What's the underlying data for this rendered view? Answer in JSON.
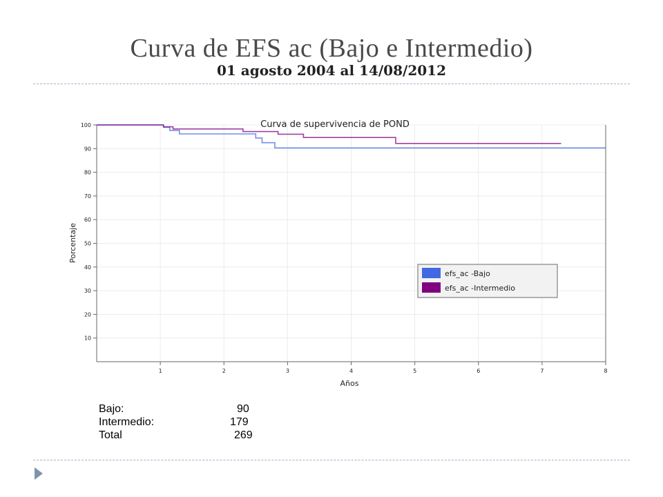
{
  "header": {
    "title": "Curva de EFS ac (Bajo e Intermedio)",
    "subtitle": "01 agosto 2004 al 14/08/2012"
  },
  "chart_data": {
    "type": "line",
    "step": true,
    "title": "Curva de supervivencia de POND",
    "xlabel": "Años",
    "ylabel": "Porcentaje",
    "xlim": [
      0,
      8
    ],
    "ylim": [
      0,
      100
    ],
    "xticks": [
      1,
      2,
      3,
      4,
      5,
      6,
      7,
      8
    ],
    "yticks": [
      10,
      20,
      30,
      40,
      50,
      60,
      70,
      80,
      90,
      100
    ],
    "grid": true,
    "legend": "inside-right",
    "series": [
      {
        "name": "efs_ac -Bajo",
        "color": "#4169e1",
        "points": [
          [
            0,
            100
          ],
          [
            1.05,
            100
          ],
          [
            1.05,
            99
          ],
          [
            1.15,
            99
          ],
          [
            1.15,
            97.7
          ],
          [
            1.3,
            97.7
          ],
          [
            1.3,
            96.2
          ],
          [
            2.5,
            96.2
          ],
          [
            2.5,
            94.5
          ],
          [
            2.6,
            94.5
          ],
          [
            2.6,
            92.5
          ],
          [
            2.8,
            92.5
          ],
          [
            2.8,
            90.3
          ],
          [
            8,
            90.3
          ]
        ]
      },
      {
        "name": "efs_ac -Intermedio",
        "color": "#800080",
        "points": [
          [
            0,
            100
          ],
          [
            1.05,
            100
          ],
          [
            1.05,
            99.2
          ],
          [
            1.2,
            99.2
          ],
          [
            1.2,
            98.3
          ],
          [
            2.3,
            98.3
          ],
          [
            2.3,
            97.2
          ],
          [
            2.85,
            97.2
          ],
          [
            2.85,
            96.1
          ],
          [
            3.25,
            96.1
          ],
          [
            3.25,
            94.7
          ],
          [
            4.7,
            94.7
          ],
          [
            4.7,
            92.2
          ],
          [
            7.3,
            92.2
          ]
        ]
      }
    ]
  },
  "stats": [
    {
      "label": "Bajo:",
      "value": "90"
    },
    {
      "label": "Intermedio:",
      "value": "179"
    },
    {
      "label": "Total",
      "value": "269"
    }
  ]
}
